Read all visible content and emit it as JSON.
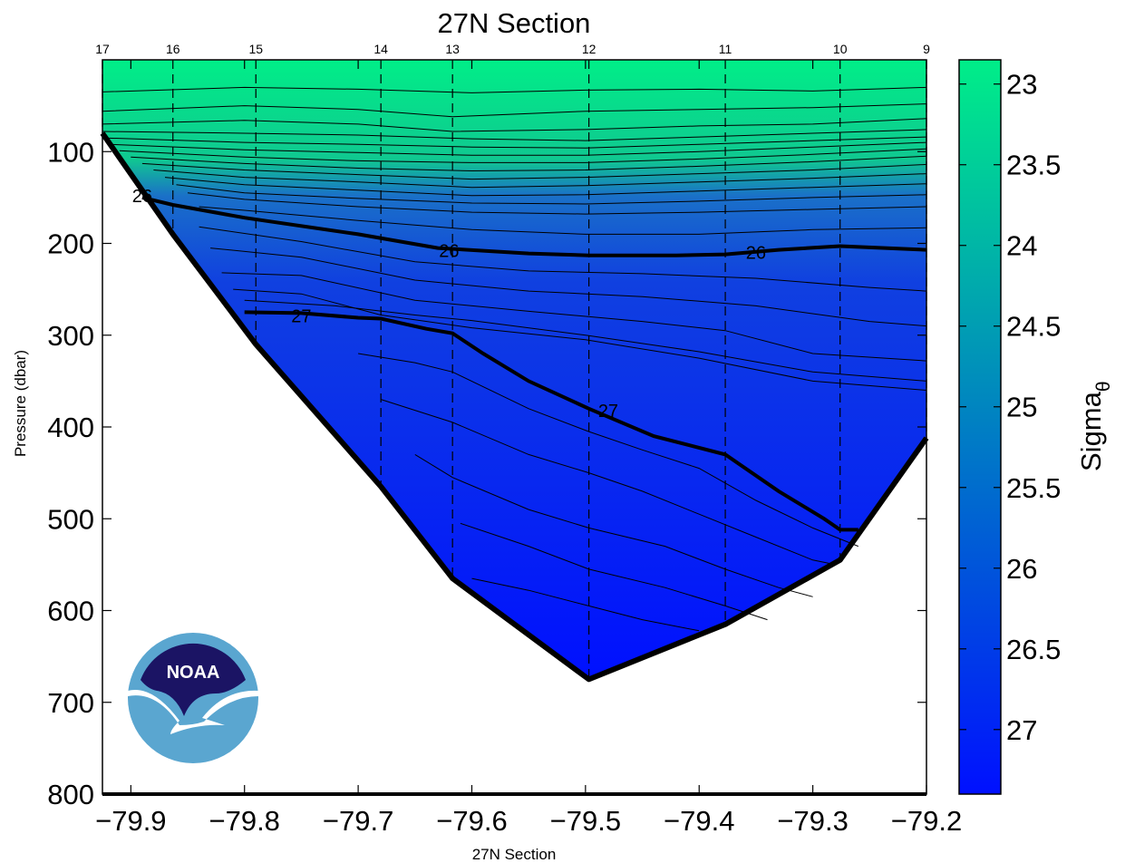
{
  "chart_data": {
    "type": "heatmap",
    "title": "27N Section",
    "xlabel": "27N Section",
    "ylabel": "Pressure (dbar)",
    "xlim": [
      -79.925,
      -79.2
    ],
    "ylim": [
      800,
      0
    ],
    "y_reversed": true,
    "grid": false,
    "x_ticks": [
      -79.9,
      -79.8,
      -79.7,
      -79.6,
      -79.5,
      -79.4,
      -79.3,
      -79.2
    ],
    "x_tick_labels": [
      "−79.9",
      "−79.8",
      "−79.7",
      "−79.6",
      "−79.5",
      "−79.4",
      "−79.3",
      "−79.2"
    ],
    "y_ticks": [
      100,
      200,
      300,
      400,
      500,
      600,
      700,
      800
    ],
    "y_tick_labels": [
      "100",
      "200",
      "300",
      "400",
      "500",
      "600",
      "700",
      "800"
    ],
    "stations": [
      {
        "label": "17",
        "lon": -79.925,
        "bottom": 80
      },
      {
        "label": "16",
        "lon": -79.863,
        "bottom": 190
      },
      {
        "label": "15",
        "lon": -79.79,
        "bottom": 310
      },
      {
        "label": "14",
        "lon": -79.68,
        "bottom": 465
      },
      {
        "label": "13",
        "lon": -79.617,
        "bottom": 565
      },
      {
        "label": "12",
        "lon": -79.497,
        "bottom": 675
      },
      {
        "label": "11",
        "lon": -79.377,
        "bottom": 615
      },
      {
        "label": "10",
        "lon": -79.276,
        "bottom": 545
      },
      {
        "label": "9",
        "lon": -79.2,
        "bottom": 412
      }
    ],
    "bathymetry": [
      [
        -79.925,
        80
      ],
      [
        -79.863,
        190
      ],
      [
        -79.79,
        310
      ],
      [
        -79.68,
        465
      ],
      [
        -79.617,
        565
      ],
      [
        -79.497,
        675
      ],
      [
        -79.377,
        615
      ],
      [
        -79.276,
        545
      ],
      [
        -79.2,
        412
      ]
    ],
    "bold_contours": [
      {
        "level": 26,
        "label": "26",
        "points": [
          [
            -79.89,
            150
          ],
          [
            -79.863,
            158
          ],
          [
            -79.8,
            172
          ],
          [
            -79.7,
            190
          ],
          [
            -79.63,
            205
          ],
          [
            -79.55,
            211
          ],
          [
            -79.497,
            213
          ],
          [
            -79.42,
            213
          ],
          [
            -79.377,
            212
          ],
          [
            -79.33,
            207
          ],
          [
            -79.276,
            203
          ],
          [
            -79.2,
            207
          ]
        ],
        "label_positions": [
          [
            -79.89,
            148
          ],
          [
            -79.62,
            208
          ],
          [
            -79.35,
            210
          ]
        ]
      },
      {
        "level": 27,
        "label": "27",
        "points": [
          [
            -79.8,
            275
          ],
          [
            -79.75,
            276
          ],
          [
            -79.7,
            281
          ],
          [
            -79.68,
            282
          ],
          [
            -79.64,
            293
          ],
          [
            -79.617,
            298
          ],
          [
            -79.59,
            320
          ],
          [
            -79.55,
            350
          ],
          [
            -79.497,
            380
          ],
          [
            -79.44,
            410
          ],
          [
            -79.377,
            430
          ],
          [
            -79.33,
            470
          ],
          [
            -79.29,
            500
          ],
          [
            -79.276,
            512
          ],
          [
            -79.26,
            512
          ]
        ],
        "label_positions": [
          [
            -79.75,
            279
          ],
          [
            -79.48,
            382
          ]
        ]
      }
    ],
    "thin_contours": [
      {
        "level": 23.2,
        "points": [
          [
            -79.925,
            35
          ],
          [
            -79.8,
            30
          ],
          [
            -79.7,
            32
          ],
          [
            -79.6,
            36
          ],
          [
            -79.5,
            33
          ],
          [
            -79.4,
            32
          ],
          [
            -79.3,
            34
          ],
          [
            -79.2,
            30
          ]
        ]
      },
      {
        "level": 23.4,
        "points": [
          [
            -79.925,
            56
          ],
          [
            -79.8,
            50
          ],
          [
            -79.7,
            54
          ],
          [
            -79.617,
            62
          ],
          [
            -79.5,
            56
          ],
          [
            -79.4,
            54
          ],
          [
            -79.3,
            52
          ],
          [
            -79.2,
            48
          ]
        ]
      },
      {
        "level": 23.6,
        "points": [
          [
            -79.925,
            70
          ],
          [
            -79.8,
            66
          ],
          [
            -79.7,
            70
          ],
          [
            -79.617,
            78
          ],
          [
            -79.5,
            76
          ],
          [
            -79.4,
            72
          ],
          [
            -79.3,
            70
          ],
          [
            -79.2,
            64
          ]
        ]
      },
      {
        "level": 23.8,
        "points": [
          [
            -79.925,
            78
          ],
          [
            -79.8,
            80
          ],
          [
            -79.7,
            82
          ],
          [
            -79.6,
            86
          ],
          [
            -79.5,
            88
          ],
          [
            -79.4,
            84
          ],
          [
            -79.3,
            80
          ],
          [
            -79.2,
            76
          ]
        ]
      },
      {
        "level": 24.0,
        "points": [
          [
            -79.925,
            85
          ],
          [
            -79.8,
            90
          ],
          [
            -79.7,
            92
          ],
          [
            -79.6,
            95
          ],
          [
            -79.5,
            96
          ],
          [
            -79.4,
            92
          ],
          [
            -79.3,
            88
          ],
          [
            -79.2,
            84
          ]
        ]
      },
      {
        "level": 24.2,
        "points": [
          [
            -79.92,
            92
          ],
          [
            -79.8,
            98
          ],
          [
            -79.7,
            101
          ],
          [
            -79.6,
            104
          ],
          [
            -79.5,
            104
          ],
          [
            -79.4,
            100
          ],
          [
            -79.3,
            95
          ],
          [
            -79.2,
            90
          ]
        ]
      },
      {
        "level": 24.4,
        "points": [
          [
            -79.91,
            99
          ],
          [
            -79.8,
            106
          ],
          [
            -79.7,
            110
          ],
          [
            -79.6,
            112
          ],
          [
            -79.5,
            112
          ],
          [
            -79.4,
            108
          ],
          [
            -79.3,
            103
          ],
          [
            -79.2,
            97
          ]
        ]
      },
      {
        "level": 24.6,
        "points": [
          [
            -79.9,
            106
          ],
          [
            -79.8,
            113
          ],
          [
            -79.7,
            118
          ],
          [
            -79.6,
            121
          ],
          [
            -79.5,
            120
          ],
          [
            -79.4,
            116
          ],
          [
            -79.3,
            111
          ],
          [
            -79.2,
            105
          ]
        ]
      },
      {
        "level": 24.8,
        "points": [
          [
            -79.89,
            113
          ],
          [
            -79.8,
            120
          ],
          [
            -79.7,
            125
          ],
          [
            -79.6,
            130
          ],
          [
            -79.5,
            128
          ],
          [
            -79.4,
            124
          ],
          [
            -79.3,
            120
          ],
          [
            -79.2,
            114
          ]
        ]
      },
      {
        "level": 25.0,
        "points": [
          [
            -79.88,
            120
          ],
          [
            -79.8,
            128
          ],
          [
            -79.7,
            133
          ],
          [
            -79.6,
            139
          ],
          [
            -79.5,
            137
          ],
          [
            -79.4,
            133
          ],
          [
            -79.3,
            129
          ],
          [
            -79.2,
            124
          ]
        ]
      },
      {
        "level": 25.2,
        "points": [
          [
            -79.87,
            128
          ],
          [
            -79.8,
            136
          ],
          [
            -79.7,
            142
          ],
          [
            -79.6,
            148
          ],
          [
            -79.5,
            147
          ],
          [
            -79.4,
            143
          ],
          [
            -79.3,
            139
          ],
          [
            -79.2,
            135
          ]
        ]
      },
      {
        "level": 25.4,
        "points": [
          [
            -79.86,
            136
          ],
          [
            -79.8,
            145
          ],
          [
            -79.7,
            151
          ],
          [
            -79.6,
            156
          ],
          [
            -79.5,
            157
          ],
          [
            -79.4,
            154
          ],
          [
            -79.3,
            150
          ],
          [
            -79.2,
            147
          ]
        ]
      },
      {
        "level": 25.6,
        "points": [
          [
            -79.85,
            145
          ],
          [
            -79.8,
            152
          ],
          [
            -79.7,
            160
          ],
          [
            -79.6,
            166
          ],
          [
            -79.5,
            168
          ],
          [
            -79.4,
            166
          ],
          [
            -79.3,
            163
          ],
          [
            -79.2,
            160
          ]
        ]
      },
      {
        "level": 25.8,
        "points": [
          [
            -79.84,
            160
          ],
          [
            -79.8,
            164
          ],
          [
            -79.7,
            175
          ],
          [
            -79.6,
            185
          ],
          [
            -79.5,
            190
          ],
          [
            -79.4,
            190
          ],
          [
            -79.3,
            185
          ],
          [
            -79.2,
            183
          ]
        ]
      },
      {
        "level": 26.1,
        "points": [
          [
            -79.84,
            182
          ],
          [
            -79.75,
            198
          ],
          [
            -79.65,
            220
          ],
          [
            -79.55,
            230
          ],
          [
            -79.45,
            233
          ],
          [
            -79.35,
            238
          ],
          [
            -79.25,
            248
          ],
          [
            -79.2,
            252
          ]
        ]
      },
      {
        "level": 26.2,
        "points": [
          [
            -79.83,
            205
          ],
          [
            -79.75,
            215
          ],
          [
            -79.65,
            240
          ],
          [
            -79.55,
            252
          ],
          [
            -79.45,
            258
          ],
          [
            -79.35,
            268
          ],
          [
            -79.25,
            285
          ],
          [
            -79.2,
            290
          ]
        ]
      },
      {
        "level": 26.3,
        "points": [
          [
            -79.82,
            232
          ],
          [
            -79.75,
            235
          ],
          [
            -79.65,
            262
          ],
          [
            -79.55,
            274
          ],
          [
            -79.45,
            285
          ],
          [
            -79.377,
            295
          ],
          [
            -79.3,
            320
          ],
          [
            -79.2,
            328
          ]
        ]
      },
      {
        "level": 26.4,
        "points": [
          [
            -79.81,
            250
          ],
          [
            -79.75,
            255
          ],
          [
            -79.68,
            278
          ],
          [
            -79.6,
            292
          ],
          [
            -79.5,
            305
          ],
          [
            -79.4,
            325
          ],
          [
            -79.3,
            350
          ],
          [
            -79.2,
            360
          ]
        ]
      },
      {
        "level": 26.5,
        "points": [
          [
            -79.8,
            262
          ],
          [
            -79.72,
            268
          ],
          [
            -79.65,
            278
          ],
          [
            -79.6,
            284
          ],
          [
            -79.5,
            300
          ],
          [
            -79.4,
            318
          ],
          [
            -79.3,
            340
          ],
          [
            -79.2,
            350
          ]
        ]
      },
      {
        "level": 27.05,
        "points": [
          [
            -79.7,
            320
          ],
          [
            -79.65,
            330
          ],
          [
            -79.617,
            340
          ],
          [
            -79.55,
            380
          ],
          [
            -79.497,
            405
          ],
          [
            -79.45,
            425
          ],
          [
            -79.4,
            445
          ],
          [
            -79.35,
            480
          ],
          [
            -79.3,
            510
          ],
          [
            -79.26,
            530
          ]
        ]
      },
      {
        "level": 27.1,
        "points": [
          [
            -79.68,
            370
          ],
          [
            -79.617,
            395
          ],
          [
            -79.55,
            430
          ],
          [
            -79.497,
            450
          ],
          [
            -79.45,
            470
          ],
          [
            -79.4,
            495
          ],
          [
            -79.35,
            520
          ],
          [
            -79.3,
            545
          ],
          [
            -79.28,
            550
          ]
        ]
      },
      {
        "level": 27.15,
        "points": [
          [
            -79.65,
            430
          ],
          [
            -79.617,
            455
          ],
          [
            -79.55,
            490
          ],
          [
            -79.497,
            510
          ],
          [
            -79.43,
            530
          ],
          [
            -79.377,
            555
          ],
          [
            -79.33,
            575
          ],
          [
            -79.3,
            585
          ]
        ]
      },
      {
        "level": 27.2,
        "points": [
          [
            -79.61,
            505
          ],
          [
            -79.55,
            530
          ],
          [
            -79.497,
            555
          ],
          [
            -79.43,
            575
          ],
          [
            -79.377,
            595
          ],
          [
            -79.34,
            610
          ]
        ]
      },
      {
        "level": 27.25,
        "points": [
          [
            -79.6,
            565
          ],
          [
            -79.55,
            578
          ],
          [
            -79.497,
            595
          ],
          [
            -79.45,
            610
          ],
          [
            -79.4,
            622
          ]
        ]
      }
    ],
    "colorbar": {
      "label": "Sigma",
      "label_subscript": "θ",
      "range": [
        22.85,
        27.4
      ],
      "reversed": true,
      "ticks": [
        23,
        23.5,
        24,
        24.5,
        25,
        25.5,
        26,
        26.5,
        27
      ],
      "tick_labels": [
        "23",
        "23.5",
        "24",
        "24.5",
        "25",
        "25.5",
        "26",
        "26.5",
        "27"
      ],
      "color_low": "#00ee88",
      "color_high": "#0010ff"
    }
  },
  "logo": {
    "text": "NOAA",
    "top_color": "#1b1464",
    "bottom_color": "#5aa6d0"
  }
}
